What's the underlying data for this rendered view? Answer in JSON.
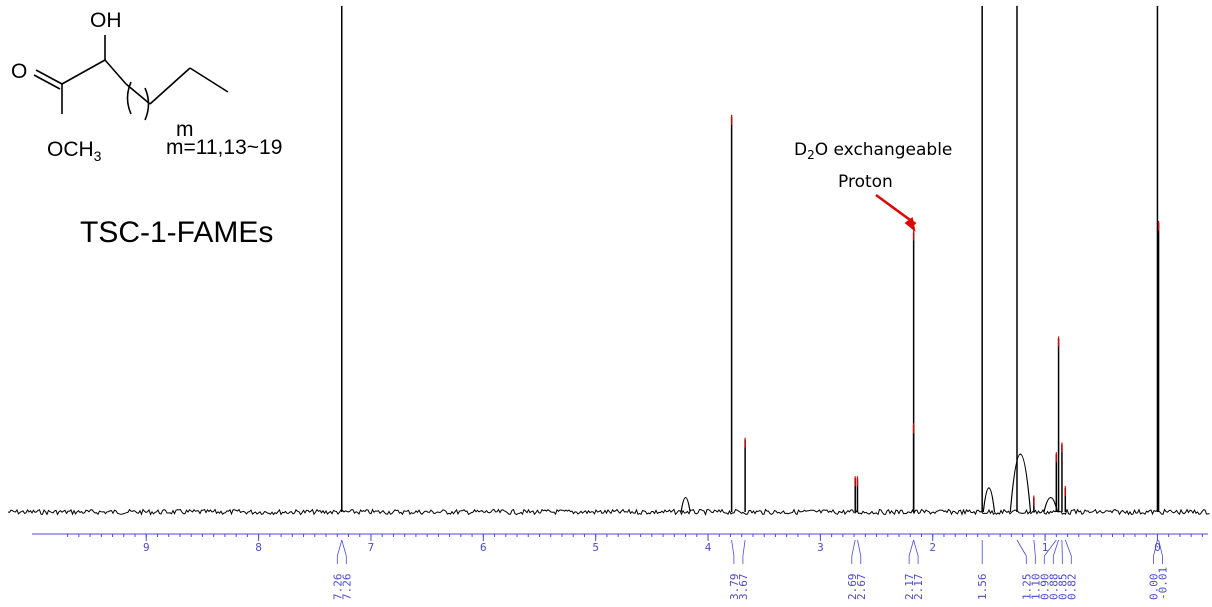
{
  "structure": {
    "oh_label": "OH",
    "o_label": "O",
    "och3_label": "OCH",
    "och3_sub": "3",
    "m_label": "m",
    "m_values": "m=11,13~19"
  },
  "compound_name": "TSC-1-FAMEs",
  "annotation": {
    "line1_D": "D",
    "line1_sub": "2",
    "line1_rest": "O exchangeable",
    "line2": "Proton",
    "arrow_color": "#e00000"
  },
  "colors": {
    "spectrum": "#000000",
    "axis": "#4b4bd0",
    "peak_marker": "#e00000",
    "peak_marker_alt": "#00a0a0"
  },
  "chart_data": {
    "type": "line",
    "title": "",
    "xlabel": "",
    "ylabel": "",
    "x_reversed": true,
    "xlim": [
      9.75,
      -0.45
    ],
    "x_ticks": [
      9,
      8,
      7,
      6,
      5,
      4,
      3,
      2,
      1,
      0
    ],
    "x_tick_labels": [
      "9",
      "8",
      "7",
      "6",
      "5",
      "4",
      "3",
      "2",
      "1",
      "0"
    ],
    "y_relative_max": 1.0,
    "peaks": [
      {
        "shift": 7.26,
        "rel_height": 1.05
      },
      {
        "shift": 3.79,
        "rel_height": 0.82
      },
      {
        "shift": 3.67,
        "rel_height": 0.15
      },
      {
        "shift": 2.69,
        "rel_height": 0.07
      },
      {
        "shift": 2.67,
        "rel_height": 0.07
      },
      {
        "shift": 2.17,
        "rel_height": 0.58
      },
      {
        "shift": 2.17,
        "rel_height": 0.18
      },
      {
        "shift": 1.56,
        "rel_height": 1.05
      },
      {
        "shift": 1.25,
        "rel_height": 1.05
      },
      {
        "shift": 1.1,
        "rel_height": 0.03
      },
      {
        "shift": 0.9,
        "rel_height": 0.12
      },
      {
        "shift": 0.88,
        "rel_height": 0.36
      },
      {
        "shift": 0.85,
        "rel_height": 0.14
      },
      {
        "shift": 0.82,
        "rel_height": 0.05
      },
      {
        "shift": 0.0,
        "rel_height": 1.05
      },
      {
        "shift": -0.01,
        "rel_height": 0.6
      }
    ],
    "peak_groups": [
      {
        "labels": [
          "7.26",
          "7.26"
        ],
        "shifts": [
          7.26,
          7.26
        ]
      },
      {
        "labels": [
          "3.79",
          "3.67"
        ],
        "shifts": [
          3.79,
          3.67
        ]
      },
      {
        "labels": [
          "2.69",
          "2.67"
        ],
        "shifts": [
          2.69,
          2.67
        ]
      },
      {
        "labels": [
          "2.17",
          "2.17"
        ],
        "shifts": [
          2.17,
          2.17
        ]
      },
      {
        "labels": [
          "1.56"
        ],
        "shifts": [
          1.56
        ]
      },
      {
        "labels": [
          "1.25",
          "1.10",
          "0.90",
          "0.88",
          "0.85",
          "0.82"
        ],
        "shifts": [
          1.25,
          1.1,
          0.9,
          0.88,
          0.85,
          0.82
        ]
      },
      {
        "labels": [
          "0.00",
          "-0.01"
        ],
        "shifts": [
          0.0,
          -0.01
        ]
      }
    ],
    "annotation_shift": 2.17
  }
}
